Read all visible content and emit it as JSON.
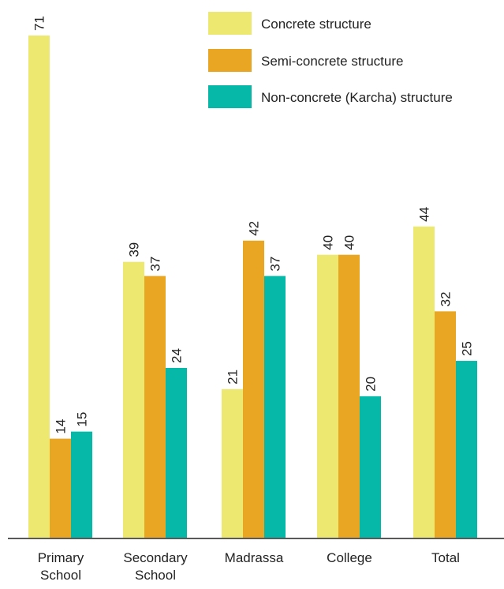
{
  "chart_data": {
    "type": "bar",
    "categories": [
      [
        "Primary",
        "School"
      ],
      [
        "Secondary",
        "School"
      ],
      [
        "Madrassa"
      ],
      [
        "College"
      ],
      [
        "Total"
      ]
    ],
    "series": [
      {
        "name": "Concrete structure",
        "color": "#ede870",
        "values": [
          71,
          39,
          21,
          40,
          44
        ]
      },
      {
        "name": "Semi-concrete structure",
        "color": "#e8a622",
        "values": [
          14,
          37,
          42,
          40,
          32
        ]
      },
      {
        "name": "Non-concrete (Karcha) structure",
        "color": "#05b8a8",
        "values": [
          15,
          24,
          37,
          20,
          25
        ]
      }
    ],
    "ylim": [
      0,
      71
    ],
    "grid": false,
    "legend_position": "top-right",
    "data_labels_rotated": true
  }
}
